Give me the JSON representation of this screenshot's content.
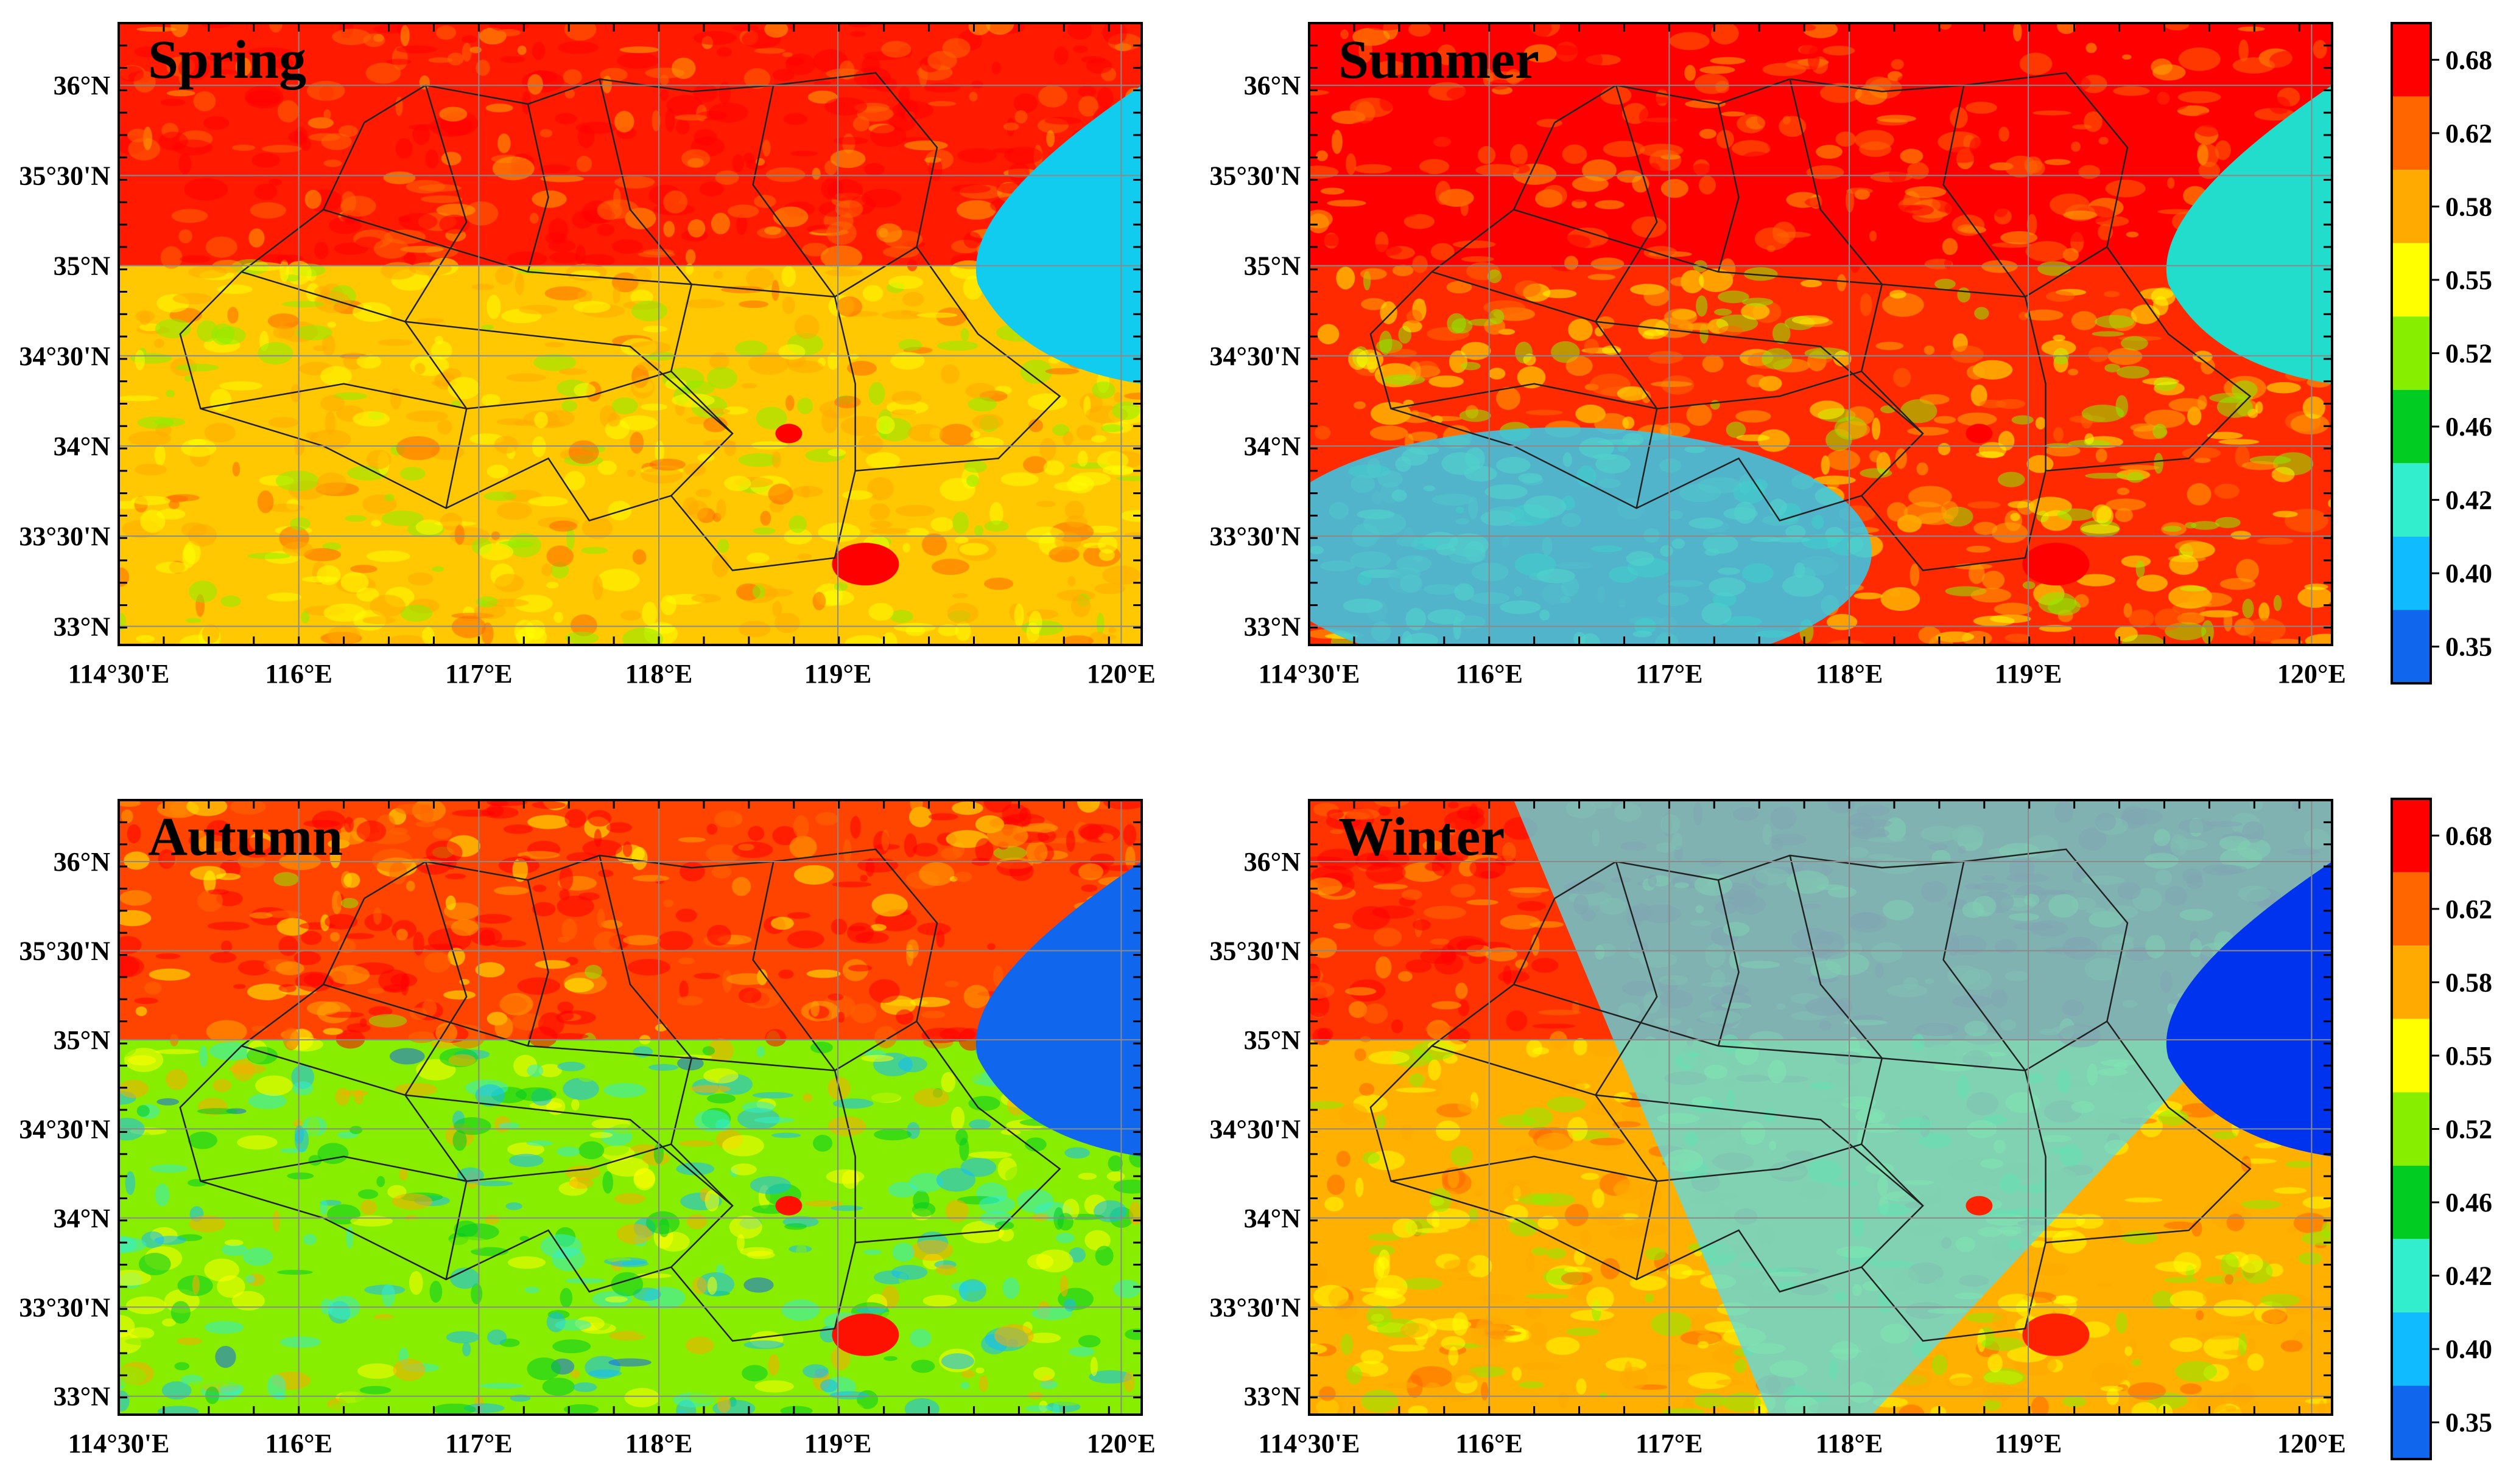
{
  "legend": {
    "colors": [
      "#ff0000",
      "#ff6600",
      "#ffaa00",
      "#ffff00",
      "#88ee00",
      "#00cc22",
      "#33eecc",
      "#11bbff",
      "#1166ee"
    ],
    "labels": [
      "0.68",
      "0.62",
      "0.58",
      "0.55",
      "0.52",
      "0.46",
      "0.42",
      "0.40",
      "0.35"
    ]
  },
  "axes": {
    "lat_labels": [
      "36°N",
      "35°30'N",
      "35°N",
      "34°30'N",
      "34°N",
      "33°30'N",
      "33°N"
    ],
    "lon_labels": [
      "114°30'E",
      "116°E",
      "117°E",
      "118°E",
      "119°E",
      "120°E"
    ]
  },
  "panels": [
    {
      "title": "Spring",
      "field": {
        "north": "#ff1a00",
        "south": "#ffc800",
        "east_coast": "#11ccee",
        "lake": "#ff0000"
      }
    },
    {
      "title": "Summer",
      "field": {
        "north": "#ff0000",
        "south": "#ff2a00",
        "southwest": "#33ccee",
        "east_coast": "#22ddcc",
        "lake": "#ff0000"
      }
    },
    {
      "title": "Autumn",
      "field": {
        "north": "#ff4400",
        "south": "#88ee00",
        "east_coast": "#1166ee",
        "lake": "#ff1100"
      }
    },
    {
      "title": "Winter",
      "field": {
        "north": "#ff3300",
        "south": "#ffb000",
        "east_coast": "#0033ee",
        "diagonal": "#55ddee",
        "lake": "#ff2200"
      }
    }
  ]
}
